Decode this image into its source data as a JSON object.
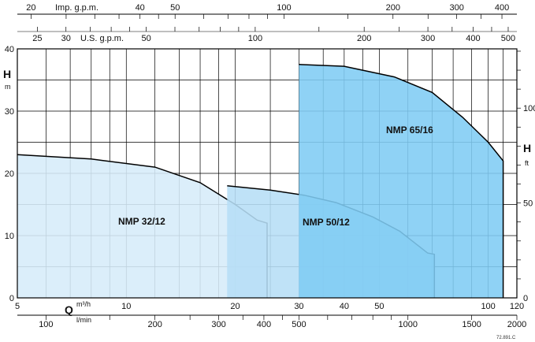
{
  "chart_data": {
    "type": "area",
    "axes": {
      "left_title": "H",
      "left_unit": "m",
      "left_ticks": [
        "0",
        "10",
        "20",
        "30",
        "40"
      ],
      "right_title": "H",
      "right_unit": "ft",
      "right_ticks": [
        "0",
        "50",
        "100"
      ],
      "bottom_title": "Q",
      "bottom_unit_top": "m³/h",
      "bottom_unit_bottom": "l/min",
      "bottom_m3h_ticks": [
        "5",
        "10",
        "20",
        "30",
        "40",
        "50",
        "100",
        "120"
      ],
      "bottom_lmin_ticks": [
        "100",
        "200",
        "300",
        "400",
        "500",
        "1000",
        "1500",
        "2000"
      ],
      "top_imp_label": "Imp. g.p.m.",
      "top_imp_ticks": [
        "20",
        "40",
        "50",
        "100",
        "200",
        "300",
        "400"
      ],
      "top_us_label": "U.S. g.p.m.",
      "top_us_ticks": [
        "25",
        "30",
        "50",
        "100",
        "200",
        "300",
        "400",
        "500"
      ],
      "ylim": [
        0,
        40
      ],
      "xscale": "log"
    },
    "series": [
      {
        "name": "NMP 32/12",
        "color": "#d6ecf9",
        "x": [
          5,
          8,
          12,
          16,
          20,
          23,
          24.5
        ],
        "y": [
          23,
          22.3,
          21,
          18.5,
          15,
          12.5,
          12
        ]
      },
      {
        "name": "NMP 50/12",
        "color": "#b6def6",
        "x": [
          19,
          25,
          31,
          38,
          48,
          57,
          68,
          71
        ],
        "y": [
          18,
          17.3,
          16.5,
          15.3,
          13,
          10.7,
          7.2,
          7
        ]
      },
      {
        "name": "NMP 65/16",
        "color": "#7fccf4",
        "x": [
          30,
          40,
          55,
          70,
          85,
          100,
          110
        ],
        "y": [
          37.5,
          37.2,
          35.5,
          33,
          29,
          25,
          22
        ]
      }
    ],
    "grid": true
  },
  "footnote": "72.891.C"
}
